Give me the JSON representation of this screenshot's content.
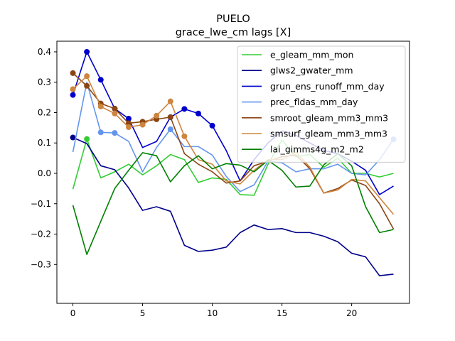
{
  "chart_data": {
    "type": "line",
    "title": "PUELO",
    "subtitle": "grace_lwe_cm lags [X]",
    "xlabel": "",
    "ylabel": "",
    "xlim": [
      -1.15,
      24.15
    ],
    "ylim": [
      -0.428,
      0.435
    ],
    "xticks": [
      0,
      5,
      10,
      15,
      20
    ],
    "yticks": [
      -0.3,
      -0.2,
      -0.1,
      0.0,
      0.1,
      0.2,
      0.3,
      0.4
    ],
    "ytick_labels": [
      "−0.3",
      "−0.2",
      "−0.1",
      "0.0",
      "0.1",
      "0.2",
      "0.3",
      "0.4"
    ],
    "grid": false,
    "legend_position": "top-right",
    "x": [
      0,
      1,
      2,
      3,
      4,
      5,
      6,
      7,
      8,
      9,
      10,
      11,
      12,
      13,
      14,
      15,
      16,
      17,
      18,
      19,
      20,
      21,
      22,
      23
    ],
    "series": [
      {
        "name": "e_gleam_mm_mon",
        "color": "#32cd32",
        "values": [
          -0.052,
          0.113,
          -0.015,
          0.005,
          0.03,
          -0.005,
          0.025,
          0.062,
          0.045,
          -0.03,
          -0.015,
          -0.02,
          -0.07,
          -0.072,
          0.03,
          0.11,
          0.055,
          0.062,
          0.02,
          0.05,
          0.0,
          0.0,
          -0.012,
          0.0
        ],
        "markers": [
          1
        ]
      },
      {
        "name": "glws2_gwater_mm",
        "color": "#00008b",
        "values": [
          0.118,
          0.098,
          0.025,
          0.012,
          -0.048,
          -0.122,
          -0.11,
          -0.125,
          -0.237,
          -0.257,
          -0.253,
          -0.243,
          -0.195,
          -0.17,
          -0.185,
          -0.182,
          -0.195,
          -0.195,
          -0.207,
          -0.225,
          -0.263,
          -0.275,
          -0.337,
          -0.332
        ],
        "markers": [
          0
        ]
      },
      {
        "name": "grun_ens_runoff_mm_day",
        "color": "#0000cd",
        "values": [
          0.258,
          0.4,
          0.308,
          0.213,
          0.18,
          0.085,
          0.105,
          0.185,
          0.212,
          0.197,
          0.157,
          0.075,
          -0.025,
          0.045,
          0.1,
          0.14,
          0.125,
          0.1,
          0.075,
          0.065,
          0.04,
          0.01,
          -0.07,
          -0.042
        ],
        "markers": [
          0,
          1,
          2,
          3,
          4,
          7,
          8,
          9,
          10
        ]
      },
      {
        "name": "prec_fldas_mm_day",
        "color": "#6495ed",
        "values": [
          0.07,
          0.3,
          0.135,
          0.133,
          0.105,
          0.005,
          0.085,
          0.145,
          0.088,
          0.088,
          0.06,
          -0.01,
          -0.06,
          -0.038,
          0.04,
          0.035,
          0.005,
          0.015,
          0.015,
          0.03,
          0.0,
          -0.005,
          0.045,
          0.112
        ],
        "markers": [
          2,
          3,
          7,
          23
        ]
      },
      {
        "name": "smroot_gleam_mm3_mm3",
        "color": "#8b4513",
        "values": [
          0.33,
          0.288,
          0.23,
          0.213,
          0.165,
          0.17,
          0.178,
          0.185,
          0.065,
          0.03,
          0.005,
          -0.032,
          -0.025,
          0.025,
          0.04,
          0.055,
          0.06,
          0.015,
          -0.065,
          -0.05,
          -0.022,
          -0.04,
          -0.1,
          -0.183
        ],
        "markers": [
          0,
          1,
          2,
          3,
          4,
          5,
          6,
          7
        ]
      },
      {
        "name": "smsurf_gleam_mm3_mm3",
        "color": "#cd853f",
        "values": [
          0.277,
          0.32,
          0.22,
          0.197,
          0.152,
          0.16,
          0.19,
          0.237,
          0.122,
          0.045,
          0.03,
          -0.025,
          -0.035,
          0.01,
          0.045,
          0.045,
          0.07,
          0.02,
          -0.065,
          -0.055,
          -0.02,
          -0.025,
          -0.08,
          -0.135
        ],
        "markers": [
          0,
          1,
          2,
          3,
          4,
          5,
          6,
          7,
          8
        ]
      },
      {
        "name": "lai_gimms4g_m2_m2",
        "color": "#008000",
        "values": [
          -0.105,
          -0.267,
          -0.158,
          -0.05,
          0.01,
          0.068,
          0.058,
          -0.028,
          0.025,
          0.058,
          0.015,
          0.032,
          0.027,
          0.005,
          0.043,
          0.01,
          -0.045,
          -0.042,
          0.028,
          0.065,
          0.025,
          -0.11,
          -0.195,
          -0.185
        ],
        "markers": []
      }
    ]
  }
}
